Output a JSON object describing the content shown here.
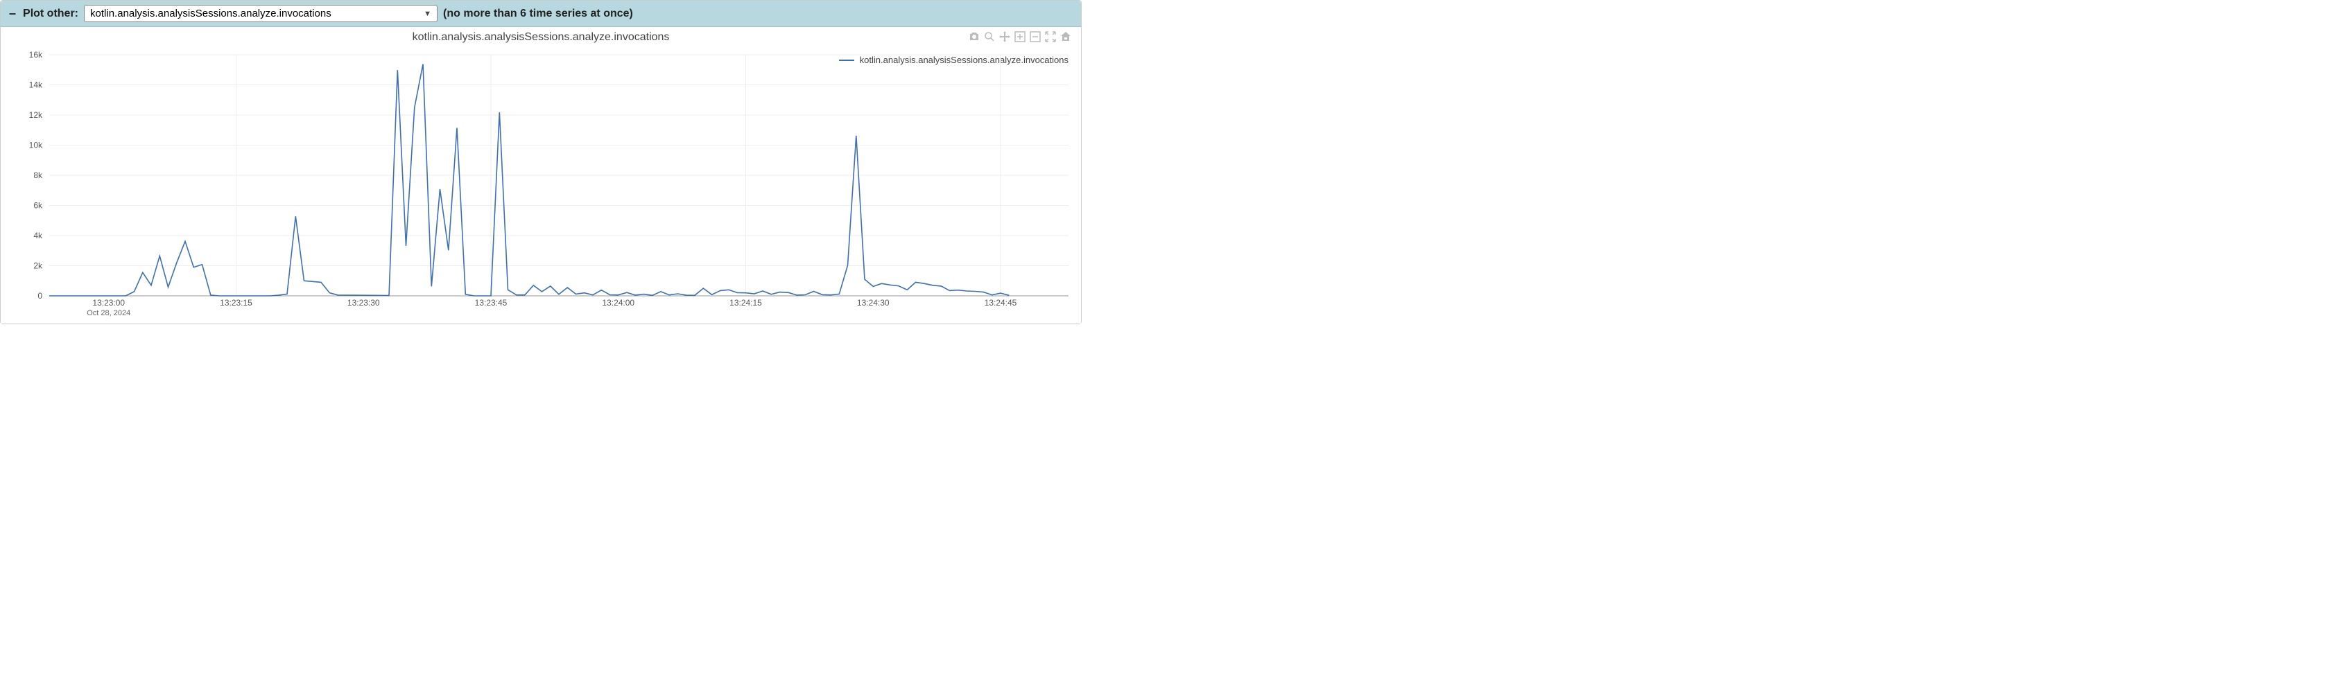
{
  "header": {
    "collapse_glyph": "–",
    "label": "Plot other:",
    "selected_metric": "kotlin.analysis.analysisSessions.analyze.invocations",
    "hint": "(no more than 6 time series at once)"
  },
  "chart": {
    "type": "line",
    "title": "kotlin.analysis.analysisSessions.analyze.invocations",
    "legend_label": "kotlin.analysis.analysisSessions.analyze.invocations",
    "series_color": "#3b6fb6",
    "background_color": "#ffffff",
    "grid_color": "#eeeeee",
    "axis_text_color": "#555555",
    "y": {
      "min": 0,
      "max": 16000,
      "tick_step": 2000,
      "tick_labels": [
        "0",
        "2k",
        "4k",
        "6k",
        "8k",
        "10k",
        "12k",
        "14k",
        "16k"
      ]
    },
    "x": {
      "min": 0,
      "max": 120,
      "tick_positions": [
        7,
        22,
        37,
        52,
        67,
        82,
        97,
        112
      ],
      "tick_labels": [
        "13:23:00",
        "13:23:15",
        "13:23:30",
        "13:23:45",
        "13:24:00",
        "13:24:15",
        "13:24:30",
        "13:24:45"
      ],
      "sub_label": "Oct 28, 2024",
      "grid_positions": [
        22,
        52,
        82,
        112
      ]
    },
    "series": [
      {
        "x": 0,
        "y": 0
      },
      {
        "x": 9,
        "y": 0
      },
      {
        "x": 10,
        "y": 280
      },
      {
        "x": 11,
        "y": 1550
      },
      {
        "x": 12,
        "y": 700
      },
      {
        "x": 13,
        "y": 2650
      },
      {
        "x": 14,
        "y": 580
      },
      {
        "x": 15,
        "y": 2200
      },
      {
        "x": 16,
        "y": 3620
      },
      {
        "x": 17,
        "y": 1900
      },
      {
        "x": 18,
        "y": 2080
      },
      {
        "x": 19,
        "y": 50
      },
      {
        "x": 20,
        "y": 0
      },
      {
        "x": 26,
        "y": 0
      },
      {
        "x": 27,
        "y": 40
      },
      {
        "x": 28,
        "y": 120
      },
      {
        "x": 29,
        "y": 5280
      },
      {
        "x": 30,
        "y": 1000
      },
      {
        "x": 31,
        "y": 950
      },
      {
        "x": 32,
        "y": 900
      },
      {
        "x": 33,
        "y": 200
      },
      {
        "x": 34,
        "y": 50
      },
      {
        "x": 40,
        "y": 20
      },
      {
        "x": 41,
        "y": 14980
      },
      {
        "x": 42,
        "y": 3320
      },
      {
        "x": 43,
        "y": 12500
      },
      {
        "x": 44,
        "y": 15380
      },
      {
        "x": 45,
        "y": 630
      },
      {
        "x": 46,
        "y": 7080
      },
      {
        "x": 47,
        "y": 3020
      },
      {
        "x": 48,
        "y": 11150
      },
      {
        "x": 49,
        "y": 100
      },
      {
        "x": 50,
        "y": 0
      },
      {
        "x": 52,
        "y": 0
      },
      {
        "x": 53,
        "y": 12180
      },
      {
        "x": 54,
        "y": 400
      },
      {
        "x": 55,
        "y": 60
      },
      {
        "x": 56,
        "y": 60
      },
      {
        "x": 57,
        "y": 700
      },
      {
        "x": 58,
        "y": 280
      },
      {
        "x": 59,
        "y": 650
      },
      {
        "x": 60,
        "y": 100
      },
      {
        "x": 61,
        "y": 550
      },
      {
        "x": 62,
        "y": 120
      },
      {
        "x": 63,
        "y": 200
      },
      {
        "x": 64,
        "y": 60
      },
      {
        "x": 65,
        "y": 380
      },
      {
        "x": 66,
        "y": 70
      },
      {
        "x": 67,
        "y": 60
      },
      {
        "x": 68,
        "y": 220
      },
      {
        "x": 69,
        "y": 50
      },
      {
        "x": 70,
        "y": 110
      },
      {
        "x": 71,
        "y": 30
      },
      {
        "x": 72,
        "y": 280
      },
      {
        "x": 73,
        "y": 60
      },
      {
        "x": 74,
        "y": 140
      },
      {
        "x": 75,
        "y": 40
      },
      {
        "x": 76,
        "y": 30
      },
      {
        "x": 77,
        "y": 500
      },
      {
        "x": 78,
        "y": 80
      },
      {
        "x": 79,
        "y": 350
      },
      {
        "x": 80,
        "y": 400
      },
      {
        "x": 81,
        "y": 210
      },
      {
        "x": 82,
        "y": 200
      },
      {
        "x": 83,
        "y": 140
      },
      {
        "x": 84,
        "y": 320
      },
      {
        "x": 85,
        "y": 100
      },
      {
        "x": 86,
        "y": 250
      },
      {
        "x": 87,
        "y": 220
      },
      {
        "x": 88,
        "y": 50
      },
      {
        "x": 89,
        "y": 70
      },
      {
        "x": 90,
        "y": 300
      },
      {
        "x": 91,
        "y": 80
      },
      {
        "x": 92,
        "y": 60
      },
      {
        "x": 93,
        "y": 120
      },
      {
        "x": 94,
        "y": 2020
      },
      {
        "x": 95,
        "y": 10630
      },
      {
        "x": 96,
        "y": 1100
      },
      {
        "x": 97,
        "y": 620
      },
      {
        "x": 98,
        "y": 820
      },
      {
        "x": 99,
        "y": 720
      },
      {
        "x": 100,
        "y": 660
      },
      {
        "x": 101,
        "y": 400
      },
      {
        "x": 102,
        "y": 900
      },
      {
        "x": 103,
        "y": 820
      },
      {
        "x": 104,
        "y": 700
      },
      {
        "x": 105,
        "y": 650
      },
      {
        "x": 106,
        "y": 350
      },
      {
        "x": 107,
        "y": 380
      },
      {
        "x": 108,
        "y": 320
      },
      {
        "x": 109,
        "y": 300
      },
      {
        "x": 110,
        "y": 250
      },
      {
        "x": 111,
        "y": 60
      },
      {
        "x": 112,
        "y": 180
      },
      {
        "x": 113,
        "y": 30
      }
    ]
  },
  "toolbar_icons": [
    "camera",
    "zoom",
    "pan",
    "zoom-in",
    "zoom-out",
    "autoscale",
    "home"
  ]
}
